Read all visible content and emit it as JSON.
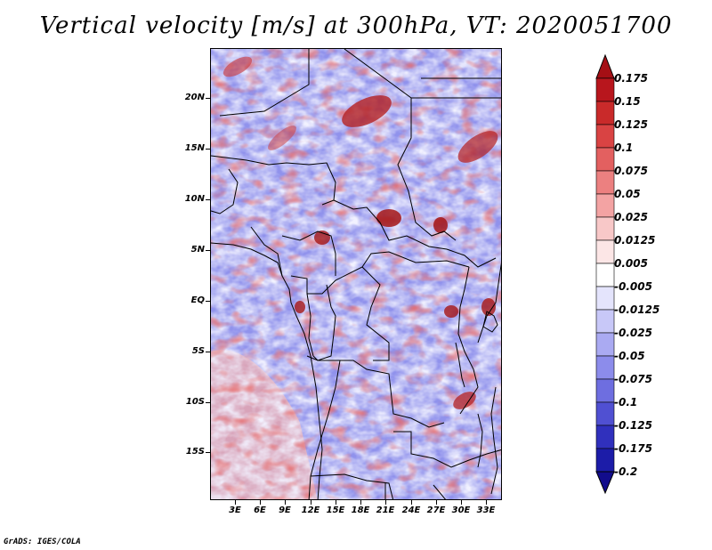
{
  "title": "Vertical velocity [m/s] at 300hPa, VT: 2020051700",
  "footer": "GrADS: IGES/COLA",
  "colors": {
    "positive_max": "#a50f15",
    "neutral": "#ffffff",
    "negative_max": "#1a0c9a",
    "background_field": "#9a9cf0",
    "border_lines": "#000000"
  },
  "map": {
    "lat_labels": [
      "20N",
      "15N",
      "10N",
      "5N",
      "EQ",
      "5S",
      "10S",
      "15S"
    ],
    "lon_labels": [
      "3E",
      "6E",
      "9E",
      "12E",
      "15E",
      "18E",
      "21E",
      "24E",
      "27E",
      "30E",
      "33E"
    ]
  },
  "colorbar": {
    "labels": [
      "0.175",
      "0.15",
      "0.125",
      "0.1",
      "0.075",
      "0.05",
      "0.025",
      "0.0125",
      "0.005",
      "-0.005",
      "-0.0125",
      "-0.025",
      "-0.05",
      "-0.075",
      "-0.1",
      "-0.125",
      "-0.175",
      "-0.2"
    ],
    "colors": [
      "#a50f15",
      "#b8161d",
      "#c92a2a",
      "#d94343",
      "#e36060",
      "#ec8080",
      "#f3a3a3",
      "#f8c8c8",
      "#fce6e6",
      "#ffffff",
      "#e4e4fc",
      "#c8c8f8",
      "#aaaaf2",
      "#8c8ceb",
      "#6e6ee0",
      "#5050d2",
      "#3030bd",
      "#1c1ca8",
      "#120c8c"
    ]
  }
}
